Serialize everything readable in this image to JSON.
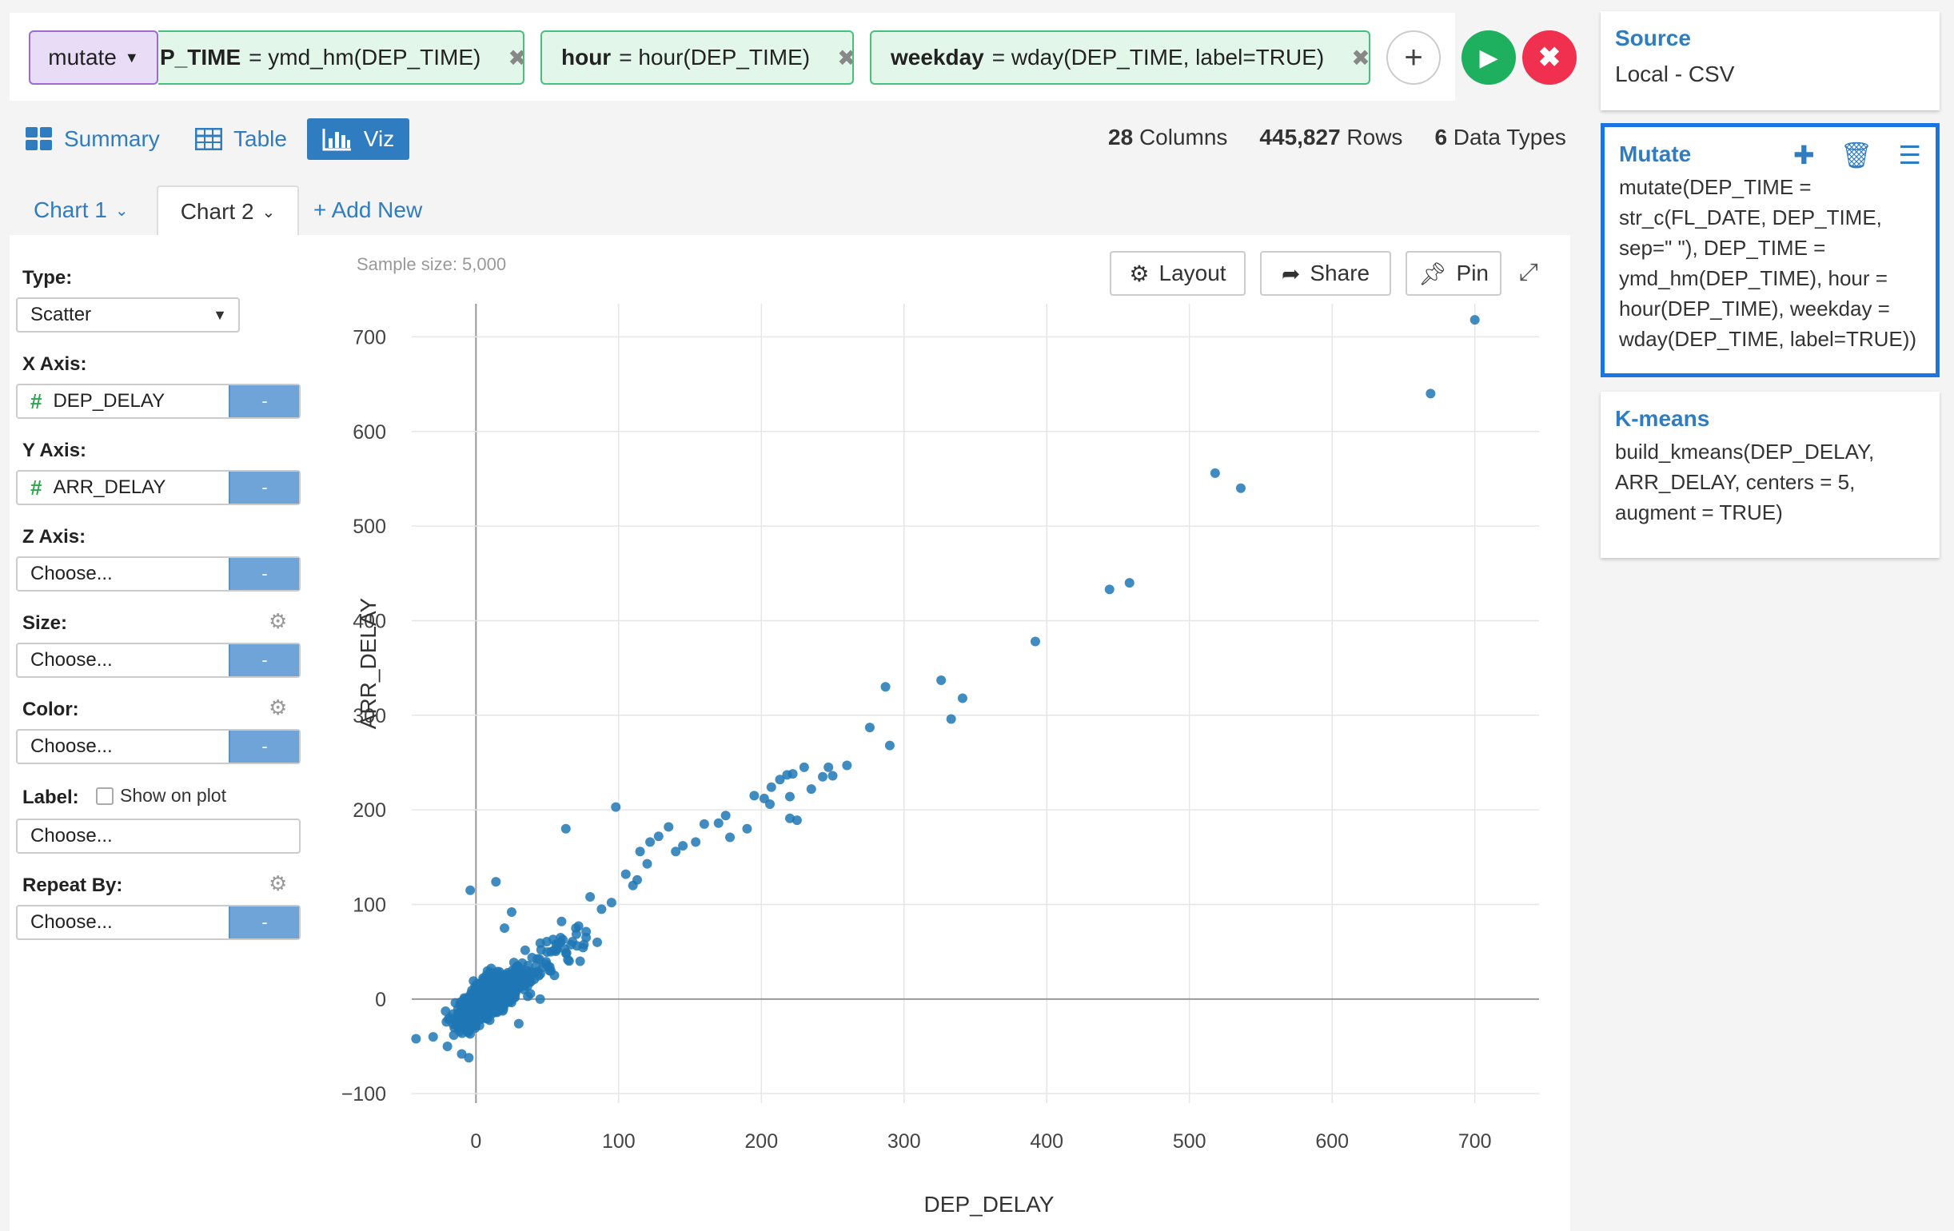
{
  "command_bar": {
    "verb": "mutate",
    "chips": [
      {
        "name": "P_TIME",
        "expr": "= ymd_hm(DEP_TIME)"
      },
      {
        "name": "hour",
        "expr": "= hour(DEP_TIME)"
      },
      {
        "name": "weekday",
        "expr": "= wday(DEP_TIME, label=TRUE)"
      }
    ],
    "icons": {
      "add": "plus-icon",
      "run": "play-icon",
      "cancel": "close-icon",
      "remove": "times-icon"
    }
  },
  "view_tabs": [
    {
      "label": "Summary",
      "icon": "grid-icon"
    },
    {
      "label": "Table",
      "icon": "table-icon"
    },
    {
      "label": "Viz",
      "icon": "bar-chart-icon",
      "active": true
    }
  ],
  "stats": {
    "columns_count": "28",
    "columns_label": "Columns",
    "rows_count": "445,827",
    "rows_label": "Rows",
    "types_count": "6",
    "types_label": "Data Types"
  },
  "chart_tabs": {
    "tabs": [
      {
        "label": "Chart 1"
      },
      {
        "label": "Chart 2",
        "active": true
      }
    ],
    "add_label": "+ Add New"
  },
  "form": {
    "type_label": "Type:",
    "type_value": "Scatter",
    "x_label": "X Axis:",
    "x_value": "DEP_DELAY",
    "y_label": "Y Axis:",
    "y_value": "ARR_DELAY",
    "z_label": "Z Axis:",
    "z_value": "Choose...",
    "size_label": "Size:",
    "size_value": "Choose...",
    "color_label": "Color:",
    "color_value": "Choose...",
    "label_label": "Label:",
    "show_on_plot": "Show on plot",
    "label_value": "Choose...",
    "repeat_label": "Repeat By:",
    "repeat_value": "Choose...",
    "minus": "-"
  },
  "chart_toolbar": {
    "sample_size": "Sample size: 5,000",
    "layout": "Layout",
    "share": "Share",
    "pin": "Pin"
  },
  "steps": {
    "source": {
      "title": "Source",
      "body": "Local - CSV"
    },
    "mutate": {
      "title": "Mutate",
      "body": "mutate(DEP_TIME = str_c(FL_DATE, DEP_TIME, sep=\" \"), DEP_TIME = ymd_hm(DEP_TIME), hour = hour(DEP_TIME), weekday = wday(DEP_TIME, label=TRUE))"
    },
    "kmeans": {
      "title": "K-means",
      "body": "build_kmeans(DEP_DELAY, ARR_DELAY, centers = 5, augment = TRUE)"
    }
  },
  "colors": {
    "accent": "#2f7dc0",
    "point": "#1f77b4",
    "run": "#1fb05f",
    "cancel": "#f0304e",
    "selected_border": "#1b74e4"
  },
  "chart_data": {
    "type": "scatter",
    "xlabel": "DEP_DELAY",
    "ylabel": "ARR_DELAY",
    "xlim": [
      -45,
      745
    ],
    "ylim": [
      -110,
      735
    ],
    "xticks": [
      0,
      100,
      200,
      300,
      400,
      500,
      600,
      700
    ],
    "yticks": [
      -100,
      0,
      100,
      200,
      300,
      400,
      500,
      600,
      700
    ],
    "grid": true,
    "outliers": [
      [
        700,
        718
      ],
      [
        669,
        640
      ],
      [
        518,
        556
      ],
      [
        536,
        540
      ],
      [
        458,
        440
      ],
      [
        444,
        433
      ],
      [
        392,
        378
      ],
      [
        326,
        337
      ],
      [
        341,
        318
      ],
      [
        287,
        330
      ],
      [
        290,
        268
      ],
      [
        276,
        287
      ],
      [
        333,
        296
      ],
      [
        260,
        247
      ],
      [
        250,
        236
      ],
      [
        222,
        238
      ],
      [
        213,
        232
      ],
      [
        247,
        245
      ],
      [
        230,
        245
      ],
      [
        207,
        224
      ],
      [
        202,
        212
      ],
      [
        218,
        237
      ],
      [
        235,
        222
      ],
      [
        243,
        235
      ],
      [
        175,
        194
      ],
      [
        195,
        215
      ],
      [
        220,
        214
      ],
      [
        220,
        191
      ],
      [
        225,
        189
      ],
      [
        206,
        206
      ],
      [
        160,
        185
      ],
      [
        178,
        171
      ],
      [
        190,
        180
      ],
      [
        154,
        166
      ],
      [
        170,
        186
      ],
      [
        145,
        162
      ],
      [
        135,
        182
      ],
      [
        128,
        172
      ],
      [
        140,
        156
      ],
      [
        122,
        166
      ],
      [
        98,
        203
      ],
      [
        63,
        180
      ],
      [
        120,
        143
      ],
      [
        113,
        126
      ],
      [
        105,
        132
      ],
      [
        110,
        120
      ],
      [
        115,
        156
      ],
      [
        95,
        102
      ],
      [
        80,
        108
      ],
      [
        88,
        95
      ],
      [
        60,
        82
      ],
      [
        70,
        75
      ],
      [
        14,
        124
      ],
      [
        -4,
        115
      ],
      [
        20,
        75
      ],
      [
        -42,
        -42
      ],
      [
        -30,
        -40
      ],
      [
        -20,
        -50
      ],
      [
        -10,
        -58
      ],
      [
        -5,
        -62
      ],
      [
        30,
        -26
      ],
      [
        45,
        0
      ],
      [
        55,
        25
      ],
      [
        85,
        60
      ],
      [
        73,
        40
      ],
      [
        25,
        92
      ]
    ],
    "cluster": {
      "count": 900,
      "x_range": [
        -25,
        110
      ],
      "slope": 0.95,
      "spread": 14,
      "center": [
        8,
        0
      ],
      "seed": 7
    }
  }
}
